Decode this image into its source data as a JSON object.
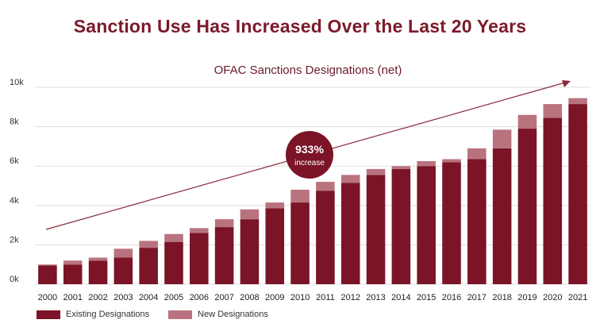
{
  "chart_data": {
    "type": "bar",
    "stacked": true,
    "title": "Sanction Use Has Increased Over the Last 20 Years",
    "subtitle": "OFAC Sanctions Designations (net)",
    "categories": [
      "2000",
      "2001",
      "2002",
      "2003",
      "2004",
      "2005",
      "2006",
      "2007",
      "2008",
      "2009",
      "2010",
      "2011",
      "2012",
      "2013",
      "2014",
      "2015",
      "2016",
      "2017",
      "2018",
      "2019",
      "2020",
      "2021"
    ],
    "series": [
      {
        "name": "Existing Designations",
        "color": "#7a1426",
        "values": [
          950,
          1000,
          1200,
          1350,
          1850,
          2150,
          2600,
          2900,
          3300,
          3850,
          4150,
          4750,
          5150,
          5550,
          5850,
          6000,
          6200,
          6350,
          6900,
          7900,
          8450,
          9150
        ]
      },
      {
        "name": "New Designations",
        "color": "#b9737f",
        "values": [
          50,
          200,
          150,
          450,
          350,
          400,
          250,
          400,
          500,
          300,
          650,
          450,
          400,
          300,
          150,
          250,
          150,
          550,
          950,
          700,
          700,
          300
        ]
      }
    ],
    "yticks": [
      "0k",
      "2k",
      "4k",
      "6k",
      "8k",
      "10k"
    ],
    "ylim": [
      0,
      10000
    ],
    "annotation": {
      "value": "933%",
      "label": "increase",
      "color": "#7a1426"
    },
    "trend_arrow_color": "#8a2a3a"
  },
  "legend": {
    "existing": "Existing Designations",
    "new": "New Designations"
  }
}
